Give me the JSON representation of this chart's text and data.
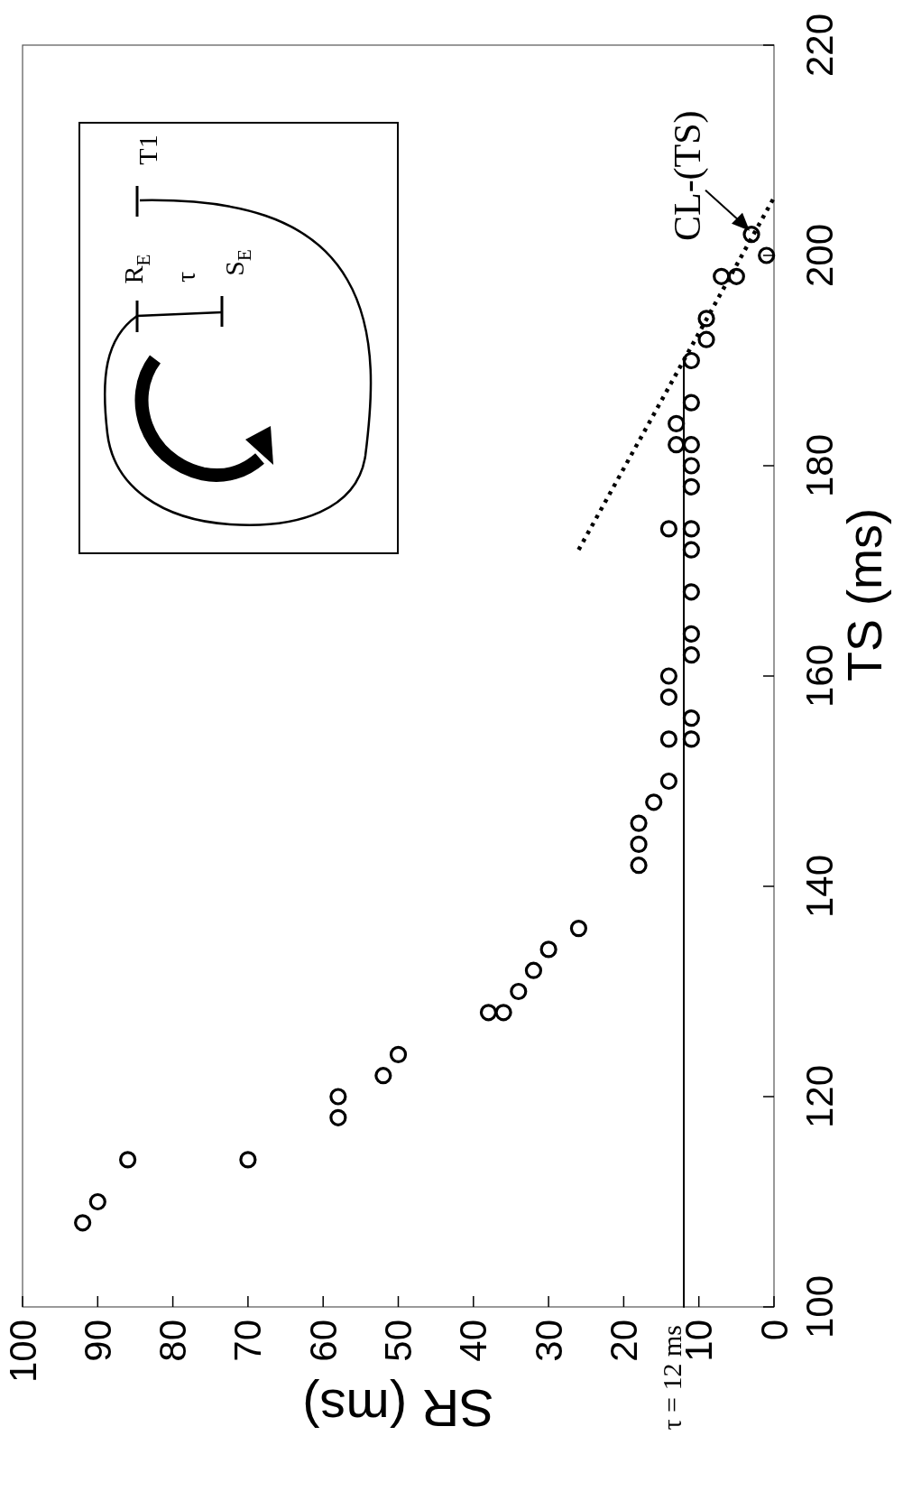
{
  "chart_data": {
    "type": "scatter",
    "xlabel": "SR (ms)",
    "ylabel": "TS (ms)",
    "xlim": [
      100,
      0
    ],
    "xticks": [
      100,
      90,
      80,
      70,
      60,
      50,
      40,
      30,
      20,
      10,
      0
    ],
    "ylim": [
      100,
      220
    ],
    "yticks": [
      100,
      120,
      140,
      160,
      180,
      200,
      220
    ],
    "grid": false,
    "marker": "circle",
    "series": [
      {
        "color": "#000000",
        "x": [
          92,
          90,
          86,
          70,
          58,
          58,
          52,
          50,
          38,
          36,
          34,
          32,
          30,
          26,
          18,
          18,
          18,
          16,
          14,
          14,
          11,
          11,
          14,
          14,
          11,
          11,
          11,
          11,
          11,
          14,
          11,
          11,
          13,
          11,
          13,
          11,
          11,
          9,
          9,
          7,
          5,
          1,
          3
        ],
        "values": [
          108,
          110,
          114,
          114,
          118,
          120,
          122,
          124,
          128,
          128,
          130,
          132,
          134,
          136,
          142,
          144,
          146,
          148,
          150,
          154,
          154,
          156,
          158,
          160,
          162,
          164,
          168,
          172,
          174,
          174,
          178,
          180,
          182,
          182,
          184,
          186,
          190,
          192,
          194,
          198,
          198,
          200,
          202
        ]
      },
      {
        "type": "line",
        "color": "#000000",
        "line_style": "solid",
        "marker": "none",
        "x": [
          12,
          12
        ],
        "values": [
          100,
          190
        ]
      },
      {
        "type": "line",
        "color": "#000000",
        "line_style": "dotted",
        "marker": "none",
        "x": [
          26,
          0
        ],
        "values": [
          172,
          205.5
        ]
      }
    ],
    "annotations": [
      {
        "text": "τ = 12 ms",
        "x": 12,
        "y": 100
      },
      {
        "text": "CL-(TS)",
        "x": 3,
        "y": 202
      },
      "R$_{E}$",
      "τ",
      "S$_{E}$",
      "T1"
    ]
  }
}
